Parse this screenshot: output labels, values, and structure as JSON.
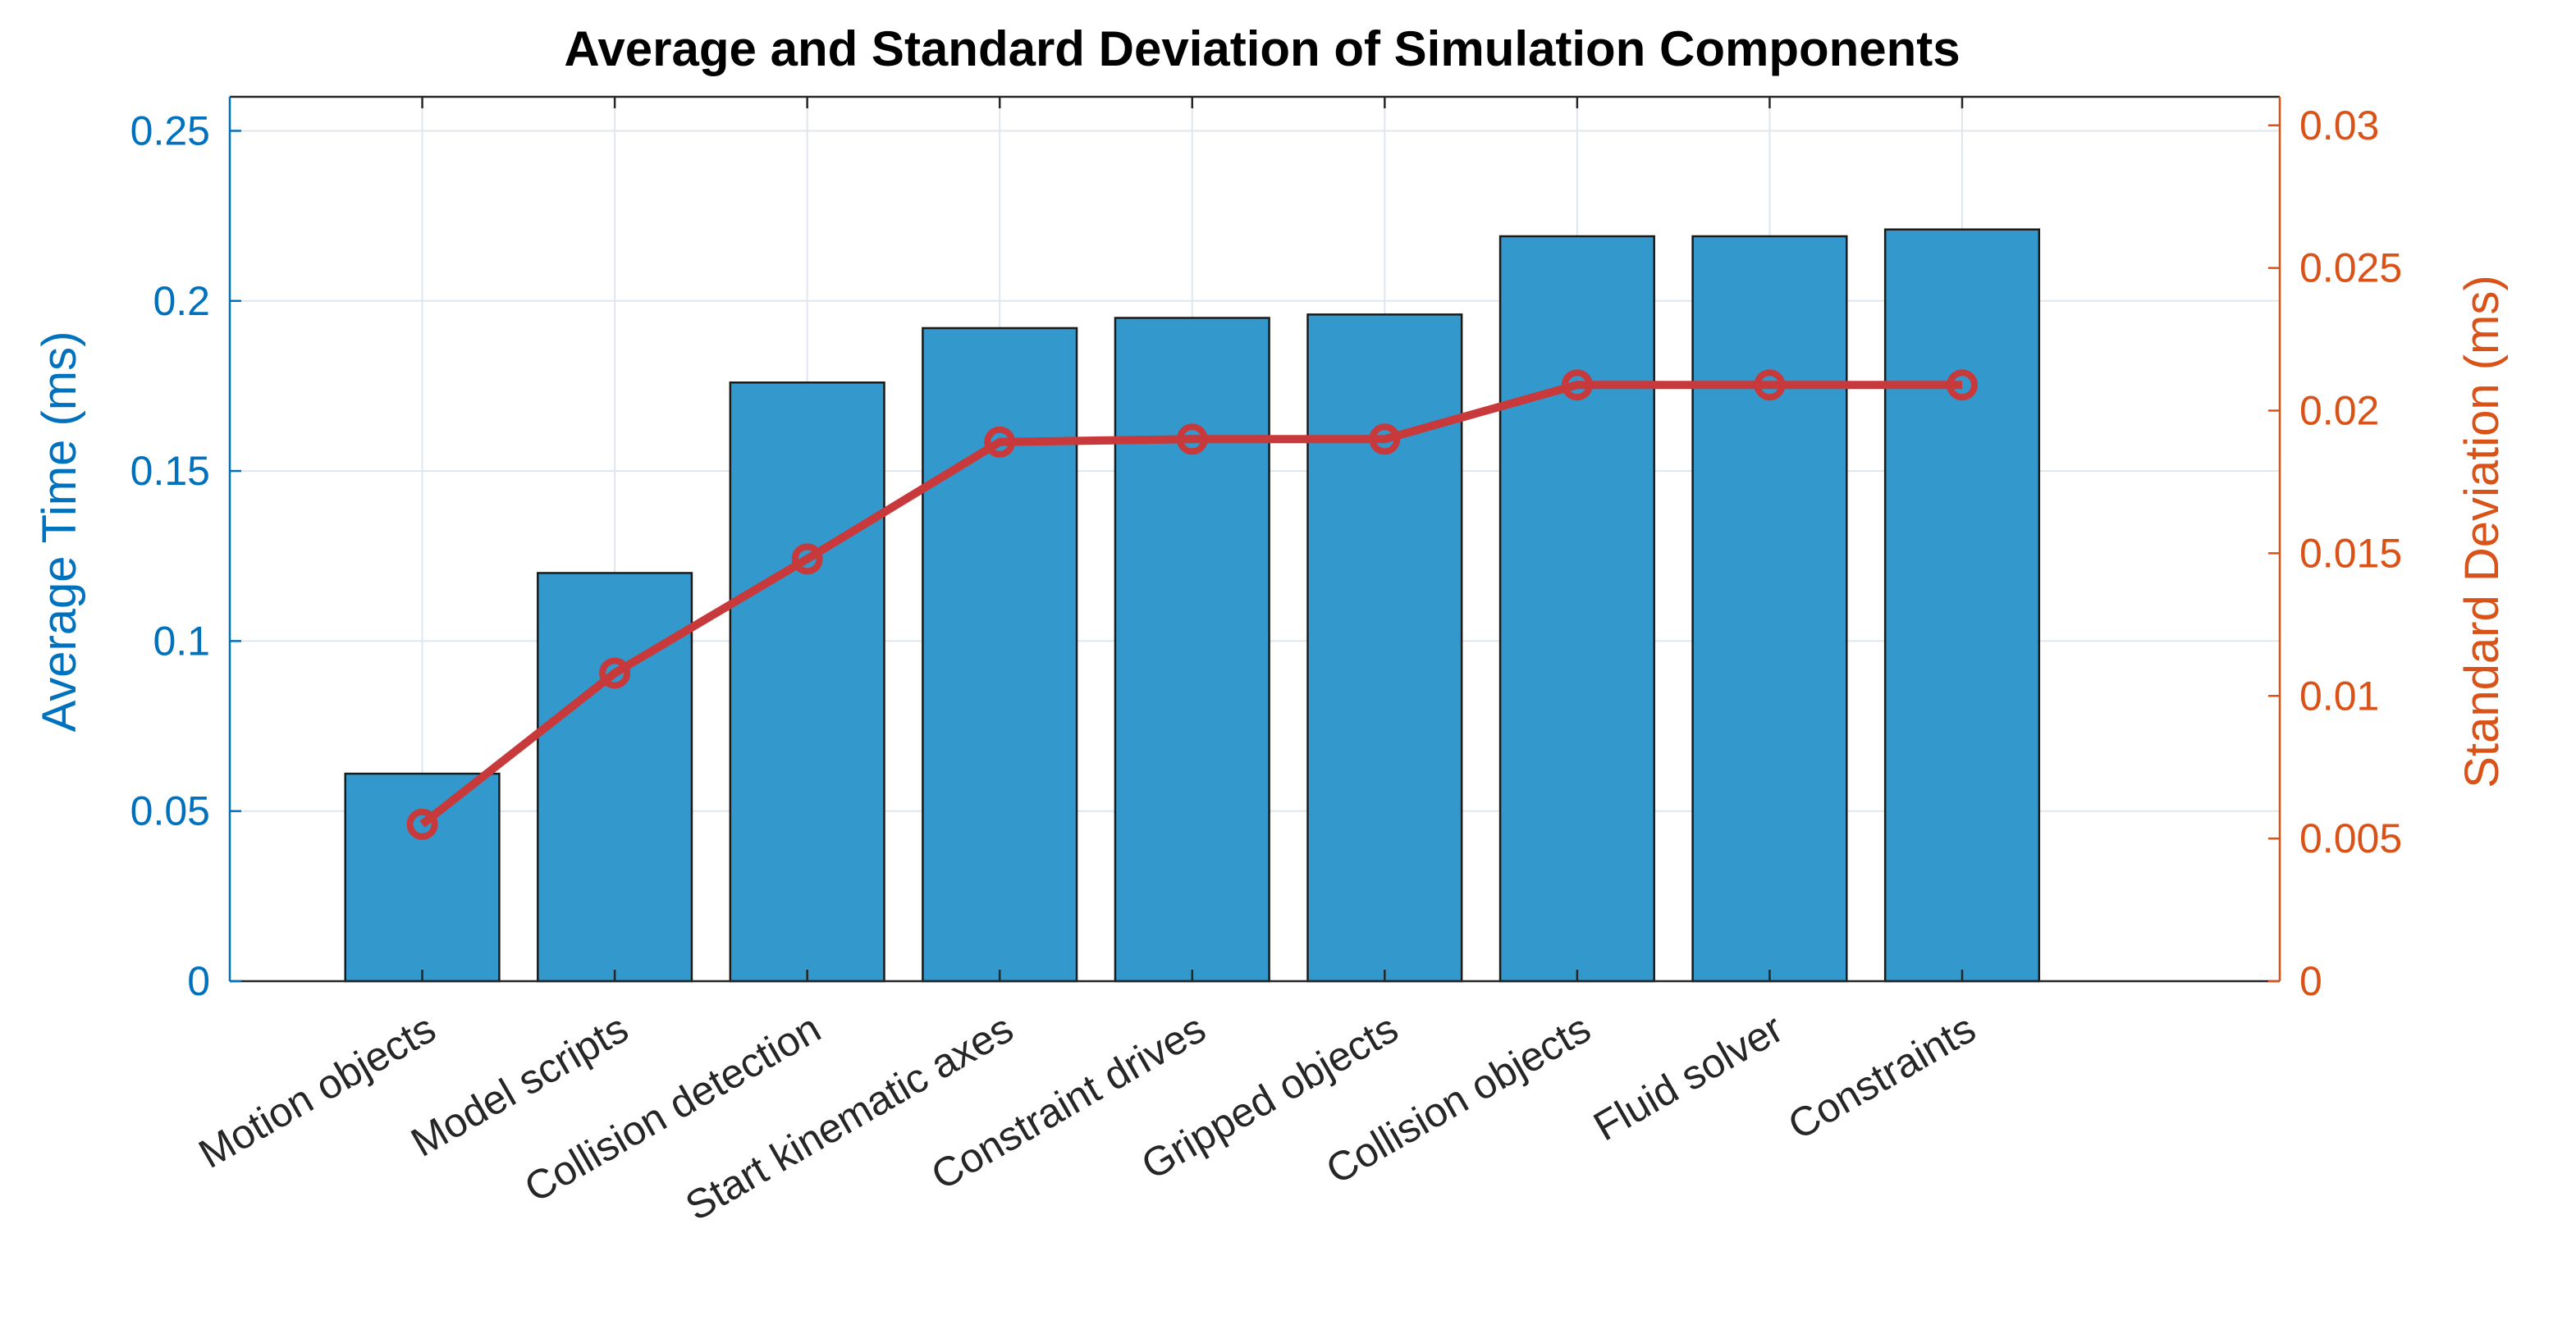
{
  "chart_data": {
    "type": "bar",
    "title": "Average and Standard Deviation of Simulation Components",
    "categories": [
      "Motion objects",
      "Model scripts",
      "Collision detection",
      "Start kinematic axes",
      "Constraint drives",
      "Gripped objects",
      "Collision objects",
      "Fluid solver",
      "Constraints"
    ],
    "xlabel": "",
    "grid": true,
    "series": [
      {
        "name": "Average Time (ms)",
        "type": "bar",
        "axis": "left",
        "values": [
          0.061,
          0.12,
          0.176,
          0.192,
          0.195,
          0.196,
          0.219,
          0.219,
          0.221
        ]
      },
      {
        "name": "Standard Deviation (ms)",
        "type": "line",
        "axis": "right",
        "marker": "circle",
        "values": [
          0.0055,
          0.0108,
          0.0148,
          0.0189,
          0.019,
          0.019,
          0.0209,
          0.0209,
          0.0209
        ]
      }
    ],
    "ylabel": "Average Time (ms)",
    "ylim": [
      0,
      0.26
    ],
    "yticks": [
      "0",
      "0.05",
      "0.1",
      "0.15",
      "0.2",
      "0.25"
    ],
    "y2label": "Standard Deviation (ms)",
    "y2lim": [
      0,
      0.031
    ],
    "y2ticks": [
      "0",
      "0.005",
      "0.01",
      "0.015",
      "0.02",
      "0.025",
      "0.03"
    ],
    "colors": {
      "bar_fill": "#3399CC",
      "bar_edge": "#1A1A1A",
      "line": "#C8393B",
      "left_axis": "#0072BD",
      "right_axis": "#D95319",
      "grid": "#DFE6EC",
      "axes_box": "#262626"
    }
  }
}
